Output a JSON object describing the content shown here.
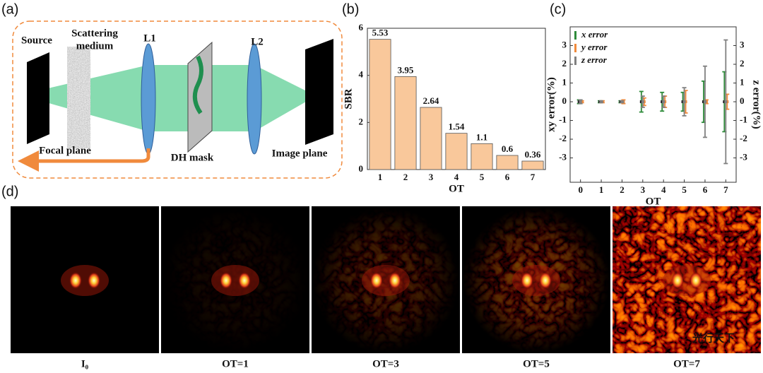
{
  "panel_labels": [
    "(a)",
    "(b)",
    "(c)",
    "(d)"
  ],
  "schematic": {
    "source": "Source",
    "scattering_medium": [
      "Scattering",
      "medium"
    ],
    "l1": "L1",
    "l2": "L2",
    "focal_plane": "Focal plane",
    "dh_mask": "DH mask",
    "image_plane": "Image plane"
  },
  "chart_data": [
    {
      "type": "bar",
      "xlabel": "OT",
      "ylabel": "SBR",
      "categories": [
        "1",
        "2",
        "3",
        "4",
        "5",
        "6",
        "7"
      ],
      "values": [
        5.53,
        3.95,
        2.64,
        1.54,
        1.1,
        0.6,
        0.36
      ],
      "color": "#f9c89b",
      "ylim": [
        0,
        6
      ],
      "yticks": [
        0,
        2,
        4,
        6
      ]
    },
    {
      "type": "errorbar",
      "xlabel": "OT",
      "ylabel": "xy error(%)",
      "y2label": "z error(%)",
      "x": [
        0,
        1,
        2,
        3,
        4,
        5,
        6,
        7
      ],
      "xlim": [
        -0.5,
        7.5
      ],
      "xticks": [
        0,
        1,
        2,
        3,
        4,
        5,
        6,
        7
      ],
      "ylim": [
        -4.3,
        4.0
      ],
      "yticks": [
        -3,
        -2,
        -1,
        0,
        1,
        2,
        3
      ],
      "y2lim": [
        -4.3,
        4.0
      ],
      "y2ticks": [
        -3,
        -2,
        -1,
        0,
        1,
        2,
        3
      ],
      "legend": "upper left",
      "series": [
        {
          "name": "x error",
          "color": "#2e8b3a",
          "values": [
            0,
            0,
            0,
            0,
            0,
            0,
            0,
            0
          ],
          "errors": [
            0.1,
            0.05,
            0.05,
            0.55,
            0.5,
            0.5,
            1.1,
            1.6
          ]
        },
        {
          "name": "y error",
          "color": "#f08a3c",
          "values": [
            0,
            0,
            0,
            0,
            0,
            0,
            0,
            0
          ],
          "errors": [
            0.05,
            0.05,
            0.1,
            0.2,
            0.3,
            0.6,
            0.1,
            0.4
          ]
        },
        {
          "name": "z error",
          "color": "#808080",
          "axis": "y2",
          "values": [
            0,
            0,
            0,
            0,
            0,
            0,
            0,
            0
          ],
          "errors": [
            0.1,
            0.05,
            0.05,
            0.3,
            0.3,
            0.75,
            1.9,
            3.3
          ]
        }
      ]
    }
  ],
  "images": {
    "captions": [
      "I₀",
      "OT=1",
      "OT=3",
      "OT=5",
      "OT=7"
    ],
    "watermark": "光行天下"
  }
}
